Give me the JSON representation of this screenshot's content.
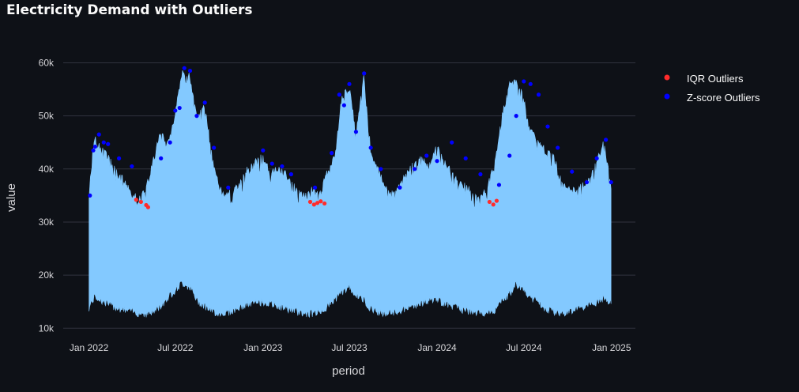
{
  "chart_data": {
    "type": "area",
    "title": "Electricity Demand with Outliers",
    "xlabel": "period",
    "ylabel": "value",
    "x_tick_labels": [
      "Jan 2022",
      "Jul 2022",
      "Jan 2023",
      "Jul 2023",
      "Jan 2024",
      "Jul 2024",
      "Jan 2025"
    ],
    "y_tick_labels": [
      "10k",
      "20k",
      "30k",
      "40k",
      "50k",
      "60k"
    ],
    "y_ticks": [
      10000,
      20000,
      30000,
      40000,
      50000,
      60000
    ],
    "ylim": [
      9300,
      62600
    ],
    "xlim": [
      "2021-11-08",
      "2025-02-20"
    ],
    "grid": true,
    "legend_position": "top-right",
    "colors": {
      "background": "#0e1117",
      "area_fill": "#83c9ff",
      "grid": "#31333f",
      "iqr_outliers": "#ff2b2b",
      "zscore_outliers": "#0000ff"
    },
    "series": [
      {
        "name": "",
        "kind": "daily-peak-envelope",
        "dates": [
          "2022-01-01",
          "2022-01-08",
          "2022-01-15",
          "2022-01-22",
          "2022-02-01",
          "2022-02-15",
          "2022-03-01",
          "2022-03-15",
          "2022-04-01",
          "2022-04-15",
          "2022-05-01",
          "2022-05-15",
          "2022-06-01",
          "2022-06-15",
          "2022-07-01",
          "2022-07-15",
          "2022-08-01",
          "2022-08-15",
          "2022-09-01",
          "2022-09-15",
          "2022-10-01",
          "2022-10-15",
          "2022-11-01",
          "2022-11-15",
          "2022-12-01",
          "2022-12-15",
          "2023-01-01",
          "2023-01-15",
          "2023-02-01",
          "2023-02-15",
          "2023-03-01",
          "2023-03-15",
          "2023-04-01",
          "2023-04-15",
          "2023-05-01",
          "2023-05-15",
          "2023-06-01",
          "2023-06-15",
          "2023-07-01",
          "2023-07-15",
          "2023-08-01",
          "2023-08-15",
          "2023-09-01",
          "2023-09-15",
          "2023-10-01",
          "2023-10-15",
          "2023-11-01",
          "2023-11-15",
          "2023-12-01",
          "2023-12-15",
          "2024-01-01",
          "2024-01-15",
          "2024-02-01",
          "2024-02-15",
          "2024-03-01",
          "2024-03-15",
          "2024-04-01",
          "2024-04-15",
          "2024-05-01",
          "2024-05-15",
          "2024-06-01",
          "2024-06-15",
          "2024-07-01",
          "2024-07-15",
          "2024-08-01",
          "2024-08-15",
          "2024-09-01",
          "2024-09-15",
          "2024-10-01",
          "2024-10-15",
          "2024-11-01",
          "2024-11-15",
          "2024-12-01",
          "2024-12-15",
          "2024-12-31"
        ],
        "peak": [
          35000,
          43500,
          46500,
          45000,
          44500,
          42000,
          40000,
          38500,
          36000,
          35000,
          37000,
          42000,
          48000,
          45000,
          51000,
          59000,
          58000,
          50000,
          52500,
          44000,
          37000,
          36000,
          36500,
          38000,
          41000,
          42000,
          43000,
          40000,
          40500,
          40000,
          38000,
          36500,
          35500,
          37000,
          36000,
          40000,
          43000,
          54000,
          56000,
          47000,
          58500,
          44000,
          40000,
          37000,
          36000,
          38000,
          40000,
          42000,
          42500,
          41000,
          45000,
          42000,
          40000,
          38000,
          37500,
          36000,
          35000,
          37000,
          42000,
          50000,
          56500,
          57000,
          54000,
          48000,
          46000,
          44000,
          43000,
          39000,
          37000,
          36500,
          37500,
          38500,
          42000,
          45500,
          37500
        ],
        "trough": [
          13000,
          14500,
          15200,
          14800,
          14200,
          13600,
          13200,
          12700,
          12400,
          12100,
          12000,
          12300,
          13500,
          15000,
          16500,
          17800,
          17000,
          14500,
          13500,
          12500,
          12000,
          12200,
          12600,
          13200,
          13800,
          14000,
          14200,
          13800,
          13500,
          13000,
          12800,
          12300,
          12000,
          12100,
          12400,
          13200,
          14800,
          16000,
          17000,
          15500,
          14500,
          13000,
          12300,
          12000,
          12200,
          12500,
          13000,
          13600,
          14000,
          14500,
          14600,
          14000,
          13500,
          13000,
          12600,
          12200,
          12000,
          12100,
          12600,
          14200,
          15800,
          17500,
          16500,
          15000,
          14200,
          13000,
          12400,
          12200,
          12300,
          12700,
          13200,
          13600,
          14000,
          15000,
          14000
        ]
      },
      {
        "name": "IQR Outliers",
        "dates": [
          "2022-04-10",
          "2022-04-20",
          "2022-05-01",
          "2022-05-05",
          "2023-04-10",
          "2023-04-18",
          "2023-04-25",
          "2023-05-02",
          "2023-05-10",
          "2024-04-20",
          "2024-04-28",
          "2024-05-05"
        ],
        "values": [
          34200,
          33800,
          33200,
          32800,
          33800,
          33300,
          33600,
          33900,
          33500,
          33800,
          33300,
          34000
        ]
      },
      {
        "name": "Z-score Outliers",
        "dates": [
          "2022-01-03",
          "2022-01-10",
          "2022-01-14",
          "2022-01-22",
          "2022-02-01",
          "2022-02-10",
          "2022-03-05",
          "2022-04-01",
          "2022-06-01",
          "2022-06-20",
          "2022-07-01",
          "2022-07-10",
          "2022-07-20",
          "2022-08-01",
          "2022-08-15",
          "2022-09-01",
          "2022-09-20",
          "2022-10-20",
          "2023-01-01",
          "2023-01-20",
          "2023-02-10",
          "2023-03-01",
          "2023-04-20",
          "2023-05-25",
          "2023-06-10",
          "2023-06-20",
          "2023-07-01",
          "2023-07-15",
          "2023-08-01",
          "2023-08-15",
          "2023-09-05",
          "2023-10-15",
          "2023-11-15",
          "2023-12-10",
          "2024-01-01",
          "2024-02-01",
          "2024-03-01",
          "2024-04-01",
          "2024-05-10",
          "2024-06-01",
          "2024-06-15",
          "2024-07-01",
          "2024-07-15",
          "2024-08-01",
          "2024-08-20",
          "2024-09-10",
          "2024-10-10",
          "2024-11-10",
          "2024-12-01",
          "2024-12-20",
          "2024-12-31"
        ],
        "values": [
          35000,
          43500,
          44200,
          46500,
          45000,
          44700,
          42000,
          40500,
          42000,
          45000,
          51000,
          51500,
          59000,
          58500,
          50000,
          52500,
          44000,
          36500,
          43500,
          41000,
          40500,
          39000,
          36500,
          43000,
          54000,
          52000,
          56000,
          47000,
          58000,
          44000,
          40000,
          36500,
          40000,
          42500,
          41500,
          45000,
          42000,
          39000,
          37000,
          42500,
          50000,
          56500,
          56000,
          54000,
          48000,
          44000,
          39500,
          37500,
          42000,
          45500,
          37500
        ]
      }
    ]
  }
}
